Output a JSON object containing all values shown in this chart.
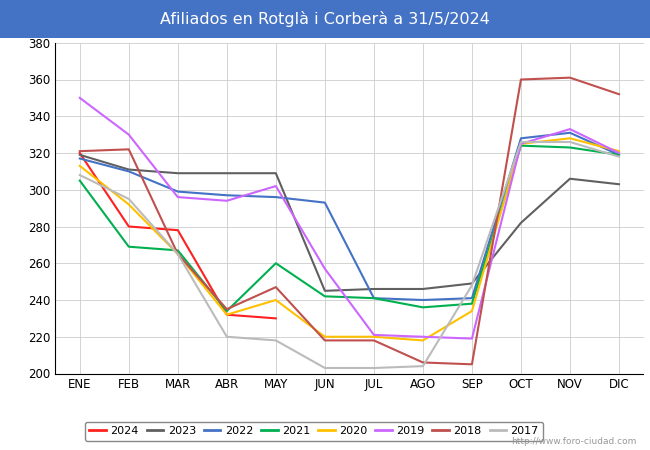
{
  "title": "Afiliados en Rotglà i Corberà a 31/5/2024",
  "title_bgcolor": "#4472C4",
  "title_fgcolor": "#FFFFFF",
  "ylim": [
    200,
    380
  ],
  "yticks": [
    200,
    220,
    240,
    260,
    280,
    300,
    320,
    340,
    360,
    380
  ],
  "months": [
    "ENE",
    "FEB",
    "MAR",
    "ABR",
    "MAY",
    "JUN",
    "JUL",
    "AGO",
    "SEP",
    "OCT",
    "NOV",
    "DIC"
  ],
  "watermark": "http://www.foro-ciudad.com",
  "series": [
    {
      "year": "2024",
      "color": "#FF2020",
      "data": [
        320,
        280,
        278,
        232,
        230,
        null,
        null,
        null,
        null,
        null,
        null,
        null
      ]
    },
    {
      "year": "2023",
      "color": "#606060",
      "data": [
        319,
        311,
        309,
        309,
        309,
        245,
        246,
        246,
        249,
        282,
        306,
        303
      ]
    },
    {
      "year": "2022",
      "color": "#4472C4",
      "data": [
        317,
        310,
        299,
        297,
        296,
        293,
        241,
        240,
        241,
        328,
        331,
        319
      ]
    },
    {
      "year": "2021",
      "color": "#00B050",
      "data": [
        305,
        269,
        267,
        234,
        260,
        242,
        241,
        236,
        238,
        324,
        323,
        319
      ]
    },
    {
      "year": "2020",
      "color": "#FFC000",
      "data": [
        313,
        292,
        265,
        232,
        240,
        220,
        220,
        218,
        234,
        325,
        328,
        321
      ]
    },
    {
      "year": "2019",
      "color": "#CC66FF",
      "data": [
        350,
        330,
        296,
        294,
        302,
        257,
        221,
        220,
        219,
        325,
        333,
        320
      ]
    },
    {
      "year": "2018",
      "color": "#C0504D",
      "data": [
        321,
        322,
        265,
        235,
        247,
        218,
        218,
        206,
        205,
        360,
        361,
        352
      ]
    },
    {
      "year": "2017",
      "color": "#BBBBBB",
      "data": [
        308,
        295,
        265,
        220,
        218,
        203,
        203,
        204,
        248,
        326,
        326,
        318
      ]
    }
  ]
}
